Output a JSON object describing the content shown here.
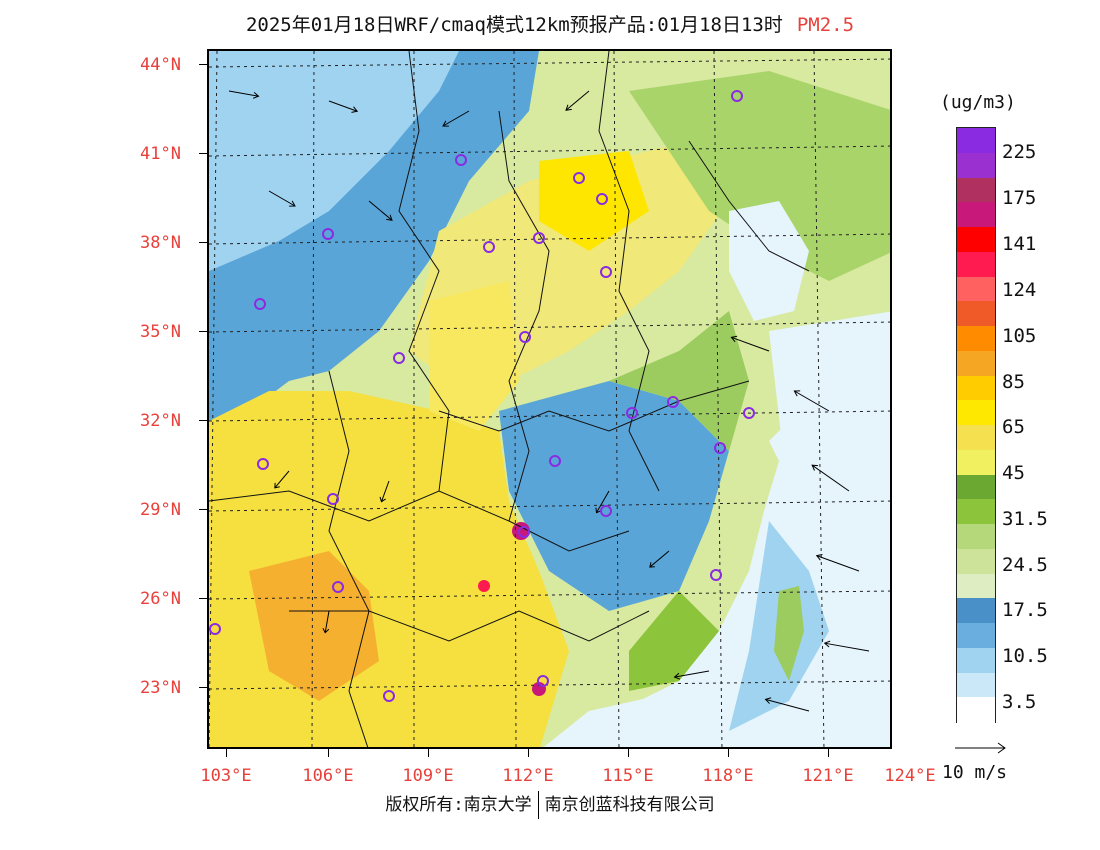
{
  "title": {
    "main": "2025年01月18日WRF/cmaq模式12km预报产品:01月18日13时",
    "species": "PM2.5",
    "species_color": "#e8403a"
  },
  "axes": {
    "latitude_labels": [
      "44°N",
      "41°N",
      "38°N",
      "35°N",
      "32°N",
      "29°N",
      "26°N",
      "23°N"
    ],
    "longitude_labels": [
      "103°E",
      "106°E",
      "109°E",
      "112°E",
      "115°E",
      "118°E",
      "121°E",
      "124°E"
    ],
    "label_color": "#e8403a"
  },
  "legend": {
    "unit": "(ug/m3)",
    "tick_labels": [
      "225",
      "175",
      "141",
      "124",
      "105",
      "85",
      "65",
      "45",
      "31.5",
      "24.5",
      "17.5",
      "10.5",
      "3.5"
    ],
    "colors_top_to_bottom": [
      "#8a2be2",
      "#9b30d0",
      "#b03060",
      "#c8187a",
      "#ff0000",
      "#ff1a50",
      "#ff6060",
      "#f05a28",
      "#ff8c00",
      "#f5a623",
      "#ffcc00",
      "#ffe800",
      "#f5e050",
      "#f0f060",
      "#6aa832",
      "#8cc43c",
      "#b5d97a",
      "#cde39a",
      "#dfedc2",
      "#4a90c8",
      "#6aaee0",
      "#9fd3f0",
      "#cbe8f8",
      "#ffffff"
    ]
  },
  "wind_reference": {
    "label": "10 m/s"
  },
  "footer": {
    "left": "版权所有:南京大学",
    "right": "南京创蓝科技有限公司"
  },
  "icons": {
    "city_marker": "circle-outline-icon",
    "wind_vector": "arrow-icon",
    "land_fill": "pollution-heatmap"
  }
}
